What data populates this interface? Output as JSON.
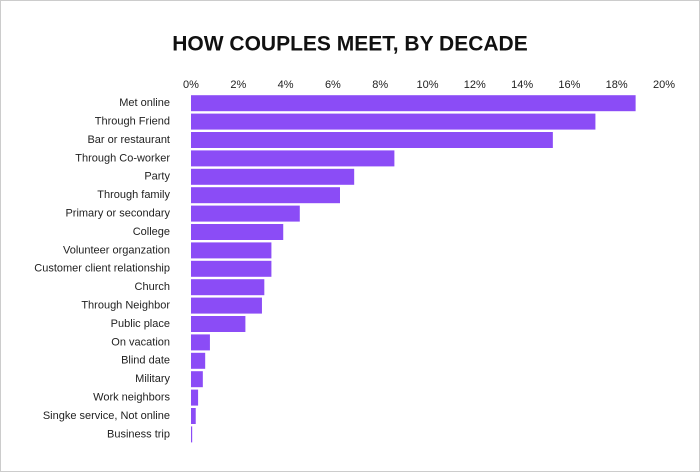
{
  "chart_data": {
    "type": "bar",
    "orientation": "horizontal",
    "title": "HOW COUPLES MEET, BY DECADE",
    "categories": [
      "Met online",
      "Through Friend",
      "Bar or restaurant",
      "Through Co-worker",
      "Party",
      "Through family",
      "Primary or secondary",
      "College",
      "Volunteer organzation",
      "Customer client relationship",
      "Church",
      "Through Neighbor",
      "Public place",
      "On vacation",
      "Blind date",
      "Military",
      "Work neighbors",
      "Singke service, Not online",
      "Business trip"
    ],
    "values": [
      18.8,
      17.1,
      15.3,
      8.6,
      6.9,
      6.3,
      4.6,
      3.9,
      3.4,
      3.4,
      3.1,
      3.0,
      2.3,
      0.8,
      0.6,
      0.5,
      0.3,
      0.2,
      0.05
    ],
    "color": "#8b4cf6",
    "xlim": [
      0,
      20
    ],
    "xticks": [
      {
        "value": 0,
        "label": "0%"
      },
      {
        "value": 2,
        "label": "2%"
      },
      {
        "value": 4,
        "label": "4%"
      },
      {
        "value": 6,
        "label": "6%"
      },
      {
        "value": 8,
        "label": "8%"
      },
      {
        "value": 10,
        "label": "10%"
      },
      {
        "value": 12,
        "label": "12%"
      },
      {
        "value": 14,
        "label": "14%"
      },
      {
        "value": 16,
        "label": "16%"
      },
      {
        "value": 18,
        "label": "18%"
      },
      {
        "value": 20,
        "label": "20%"
      }
    ],
    "grid": false
  }
}
